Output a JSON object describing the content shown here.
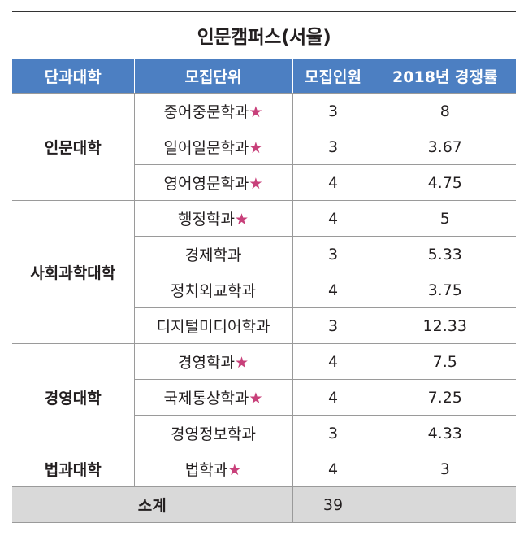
{
  "title": "인문캠퍼스(서울)",
  "table": {
    "header": [
      "단과대학",
      "모집단위",
      "모집인원",
      "2018년 경쟁률"
    ],
    "groups": [
      {
        "college": "인문대학",
        "units": [
          {
            "name": "중어중문학과",
            "star": "★",
            "quota": 3,
            "rate": 8
          },
          {
            "name": "일어일문학과",
            "star": "★",
            "quota": 3,
            "rate": 3.67
          },
          {
            "name": "영어영문학과",
            "star": "★",
            "quota": 4,
            "rate": 4.75
          }
        ]
      },
      {
        "college": "사회과학대학",
        "units": [
          {
            "name": "행정학과",
            "star": "★",
            "quota": 4,
            "rate": 5
          },
          {
            "name": "경제학과",
            "quota": 3,
            "rate": 5.33
          },
          {
            "name": "정치외교학과",
            "quota": 4,
            "rate": 3.75
          },
          {
            "name": "디지털미디어학과",
            "quota": 3,
            "rate": 12.33
          }
        ]
      },
      {
        "college": "경영대학",
        "units": [
          {
            "name": "경영학과",
            "star": "★",
            "quota": 4,
            "rate": 7.5
          },
          {
            "name": "국제통상학과",
            "star": "★",
            "quota": 4,
            "rate": 7.25
          },
          {
            "name": "경영정보학과",
            "quota": 3,
            "rate": 4.33
          }
        ]
      },
      {
        "college": "법과대학",
        "units": [
          {
            "name": "법학과",
            "star": "★",
            "quota": 4,
            "rate": 3
          }
        ]
      }
    ],
    "total": {
      "label": "소계",
      "quota": 39
    }
  }
}
